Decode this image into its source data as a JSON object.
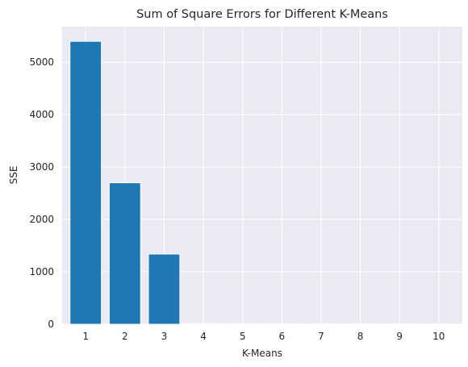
{
  "chart_data": {
    "type": "bar",
    "title": "Sum of Square Errors for Different K-Means",
    "xlabel": "K-Means",
    "ylabel": "SSE",
    "categories": [
      "1",
      "2",
      "3",
      "4",
      "5",
      "6",
      "7",
      "8",
      "9",
      "10"
    ],
    "values": [
      5400,
      2700,
      1340,
      12,
      10,
      9,
      8,
      8,
      7,
      6
    ],
    "ylim": [
      0,
      5680
    ],
    "yticks": [
      0,
      1000,
      2000,
      3000,
      4000,
      5000
    ],
    "grid": true,
    "legend": "none",
    "colors": {
      "bar": "#1f77b4",
      "plot_background": "#eaeaf2",
      "grid": "#ffffff"
    }
  }
}
